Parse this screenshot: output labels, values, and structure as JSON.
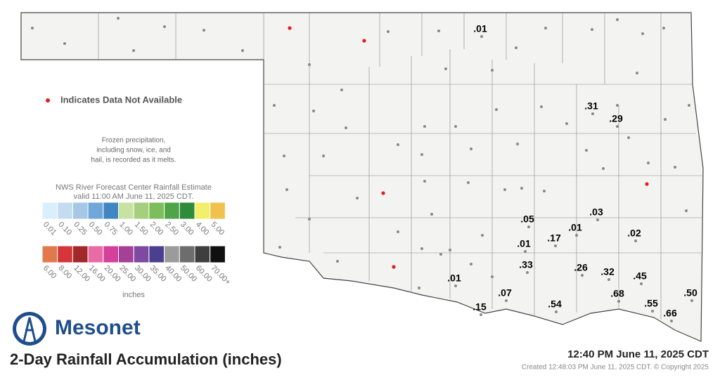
{
  "legend": {
    "missing_note": "Indicates Data Not Available",
    "frozen_note": [
      "Frozen precipitation,",
      "including snow, ice, and",
      "hail, is recorded as it melts."
    ],
    "scale_title": [
      "NWS River Forecast Center Rainfall Estimate",
      "valid 11:00 AM June 11, 2025 CDT."
    ],
    "scale_1": {
      "colors": [
        "#dbeefb",
        "#c5dbef",
        "#a6c8e6",
        "#6fa7d8",
        "#3f86c2",
        "#c7e2a1",
        "#a5cf7d",
        "#7dbe5c",
        "#4ea447",
        "#2d8b3b",
        "#f2ef6b",
        "#f0c24d"
      ],
      "labels": [
        "0.01",
        "0.10",
        "0.25",
        "0.50",
        "0.75",
        "1.00",
        "1.50",
        "2.00",
        "2.50",
        "3.00",
        "4.00",
        "5.00"
      ]
    },
    "scale_2": {
      "colors": [
        "#e07a4a",
        "#d6353a",
        "#a3282a",
        "#e86ba6",
        "#d4409a",
        "#a54098",
        "#7d4aa0",
        "#4b3f8f",
        "#9b9b9b",
        "#6d6d6d",
        "#3e3e3e",
        "#101010"
      ],
      "labels": [
        "6.00",
        "8.00",
        "12.00",
        "16.00",
        "20.00",
        "25.00",
        "30.00",
        "35.00",
        "40.00",
        "50.00",
        "60.00",
        "70.00+"
      ]
    },
    "units": "inches"
  },
  "brand": "Mesonet",
  "title": "2-Day Rainfall Accumulation (inches)",
  "timestamp": "12:40 PM June 11, 2025 CDT",
  "created": "Created 12:48:03 PM June 11, 2025 CDT. © Copyright 2025",
  "stations": [
    {
      "value": 0.01,
      "label": ".01"
    },
    {
      "value": 0.31,
      "label": ".31"
    },
    {
      "value": 0.29,
      "label": ".29"
    },
    {
      "value": 0.05,
      "label": ".05"
    },
    {
      "value": 0.03,
      "label": ".03"
    },
    {
      "value": 0.01,
      "label": ".01"
    },
    {
      "value": 0.02,
      "label": ".02"
    },
    {
      "value": 0.01,
      "label": ".01"
    },
    {
      "value": 0.17,
      "label": ".17"
    },
    {
      "value": 0.33,
      "label": ".33"
    },
    {
      "value": 0.26,
      "label": ".26"
    },
    {
      "value": 0.32,
      "label": ".32"
    },
    {
      "value": 0.45,
      "label": ".45"
    },
    {
      "value": 0.01,
      "label": ".01"
    },
    {
      "value": 0.68,
      "label": ".68"
    },
    {
      "value": 0.07,
      "label": ".07"
    },
    {
      "value": 0.5,
      "label": ".50"
    },
    {
      "value": 0.15,
      "label": ".15"
    },
    {
      "value": 0.54,
      "label": ".54"
    },
    {
      "value": 0.55,
      "label": ".55"
    },
    {
      "value": 0.66,
      "label": ".66"
    }
  ]
}
